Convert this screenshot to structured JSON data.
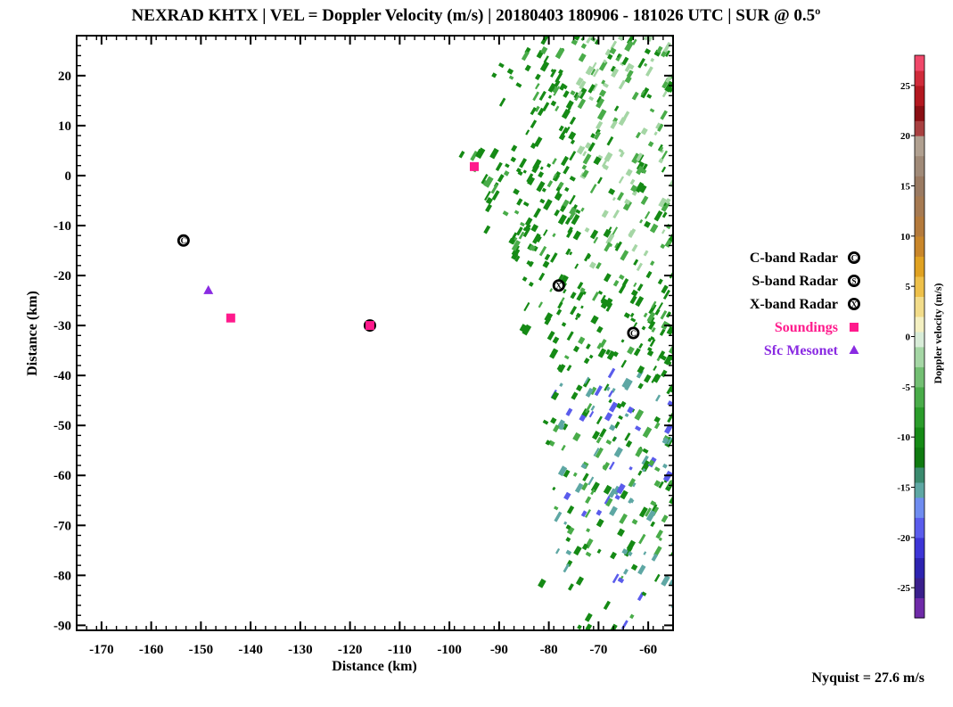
{
  "title": "NEXRAD KHTX | VEL = Doppler Velocity (m/s) | 20180403 180906 - 181026 UTC | SUR @ 0.5º",
  "x_axis": {
    "label": "Distance (km)",
    "range": [
      -175,
      -55
    ],
    "ticks": [
      -170,
      -160,
      -150,
      -140,
      -130,
      -120,
      -110,
      -100,
      -90,
      -80,
      -70,
      -60
    ],
    "tick_labels": [
      "-170",
      "-160",
      "-150",
      "-140",
      "-130",
      "-120",
      "-110",
      "-100",
      "-90",
      "-80",
      "-70",
      "-60"
    ]
  },
  "y_axis": {
    "label": "Distance (km)",
    "range": [
      -91,
      28
    ],
    "ticks": [
      20,
      10,
      0,
      -10,
      -20,
      -30,
      -40,
      -50,
      -60,
      -70,
      -80,
      -90
    ],
    "tick_labels": [
      "20",
      "10",
      "0",
      "-10",
      "-20",
      "-30",
      "-40",
      "-50",
      "-60",
      "-70",
      "-80",
      "-90"
    ]
  },
  "colorbar": {
    "title": "Doppler velocity (m/s)",
    "range": [
      -28,
      28
    ],
    "ticks": [
      25,
      20,
      15,
      10,
      5,
      0,
      -5,
      -10,
      -15,
      -20,
      -25
    ],
    "tick_labels": [
      "25",
      "20",
      "15",
      "10",
      "5",
      "0",
      "-5",
      "-10",
      "-15",
      "-20",
      "-25"
    ],
    "bands": [
      {
        "from": -28,
        "to": -26,
        "color": "#6f2aa8"
      },
      {
        "from": -26,
        "to": -24,
        "color": "#3a1f8c"
      },
      {
        "from": -24,
        "to": -22,
        "color": "#2d23b0"
      },
      {
        "from": -22,
        "to": -20,
        "color": "#3d35d6"
      },
      {
        "from": -20,
        "to": -18,
        "color": "#5a5cec"
      },
      {
        "from": -18,
        "to": -16,
        "color": "#6f8cf0"
      },
      {
        "from": -16,
        "to": -14.5,
        "color": "#5ea7a4"
      },
      {
        "from": -14.5,
        "to": -13,
        "color": "#3a8a6e"
      },
      {
        "from": -13,
        "to": -11,
        "color": "#0f7a10"
      },
      {
        "from": -11,
        "to": -9,
        "color": "#158a15"
      },
      {
        "from": -9,
        "to": -7,
        "color": "#2a9c2a"
      },
      {
        "from": -7,
        "to": -5,
        "color": "#49ac49"
      },
      {
        "from": -5,
        "to": -3,
        "color": "#73bf73"
      },
      {
        "from": -3,
        "to": -1,
        "color": "#a5d6a5"
      },
      {
        "from": -1,
        "to": 0.5,
        "color": "#d8ecd8"
      },
      {
        "from": 0.5,
        "to": 2,
        "color": "#f4f0c2"
      },
      {
        "from": 2,
        "to": 4,
        "color": "#f2dc8a"
      },
      {
        "from": 4,
        "to": 6,
        "color": "#eec04a"
      },
      {
        "from": 6,
        "to": 8,
        "color": "#e0a222"
      },
      {
        "from": 8,
        "to": 10,
        "color": "#c9862a"
      },
      {
        "from": 10,
        "to": 12,
        "color": "#b47a3c"
      },
      {
        "from": 12,
        "to": 14,
        "color": "#a67a52"
      },
      {
        "from": 14,
        "to": 16,
        "color": "#9a7a62"
      },
      {
        "from": 16,
        "to": 18,
        "color": "#a08a78"
      },
      {
        "from": 18,
        "to": 20,
        "color": "#b0a090"
      },
      {
        "from": 20,
        "to": 21.5,
        "color": "#a84040"
      },
      {
        "from": 21.5,
        "to": 23,
        "color": "#8a0f14"
      },
      {
        "from": 23,
        "to": 25,
        "color": "#b31820"
      },
      {
        "from": 25,
        "to": 26.5,
        "color": "#d02b3a"
      },
      {
        "from": 26.5,
        "to": 28,
        "color": "#f0486a"
      }
    ]
  },
  "legend": {
    "items": [
      {
        "label": "C-band Radar",
        "symbol": "C",
        "marker": "circle-letter",
        "color": "#000000"
      },
      {
        "label": "S-band Radar",
        "symbol": "S",
        "marker": "circle-letter",
        "color": "#000000"
      },
      {
        "label": "X-band Radar",
        "symbol": "X",
        "marker": "circle-letter",
        "color": "#000000"
      },
      {
        "label": "Soundings",
        "symbol": "",
        "marker": "square",
        "color": "#ff1a8c"
      },
      {
        "label": "Sfc Mesonet",
        "symbol": "",
        "marker": "triangle",
        "color": "#8a2be2"
      }
    ]
  },
  "nyquist": "Nyquist = 27.6 m/s",
  "sites": [
    {
      "type": "C-band Radar",
      "symbol": "C",
      "x": -153.5,
      "y": -13
    },
    {
      "type": "C-band Radar",
      "symbol": "C",
      "x": -116,
      "y": -30
    },
    {
      "type": "X-band Radar",
      "symbol": "X",
      "x": -78,
      "y": -22
    },
    {
      "type": "C-band Radar",
      "symbol": "C",
      "x": -63,
      "y": -31.5
    },
    {
      "type": "Soundings",
      "symbol": "",
      "x": -95,
      "y": 1.8
    },
    {
      "type": "Soundings",
      "symbol": "",
      "x": -144,
      "y": -28.5
    },
    {
      "type": "Soundings",
      "symbol": "",
      "x": -116,
      "y": -30
    },
    {
      "type": "Sfc Mesonet",
      "symbol": "",
      "x": -148.5,
      "y": -23
    }
  ],
  "colors": {
    "soundings": "#ff1a8c",
    "mesonet": "#8a2be2",
    "echo_strong": "#158a15",
    "echo_mid": "#49ac49",
    "echo_light": "#a5d6a5",
    "echo_inbound_blue": "#5a5cec",
    "echo_teal": "#5ea7a4"
  }
}
